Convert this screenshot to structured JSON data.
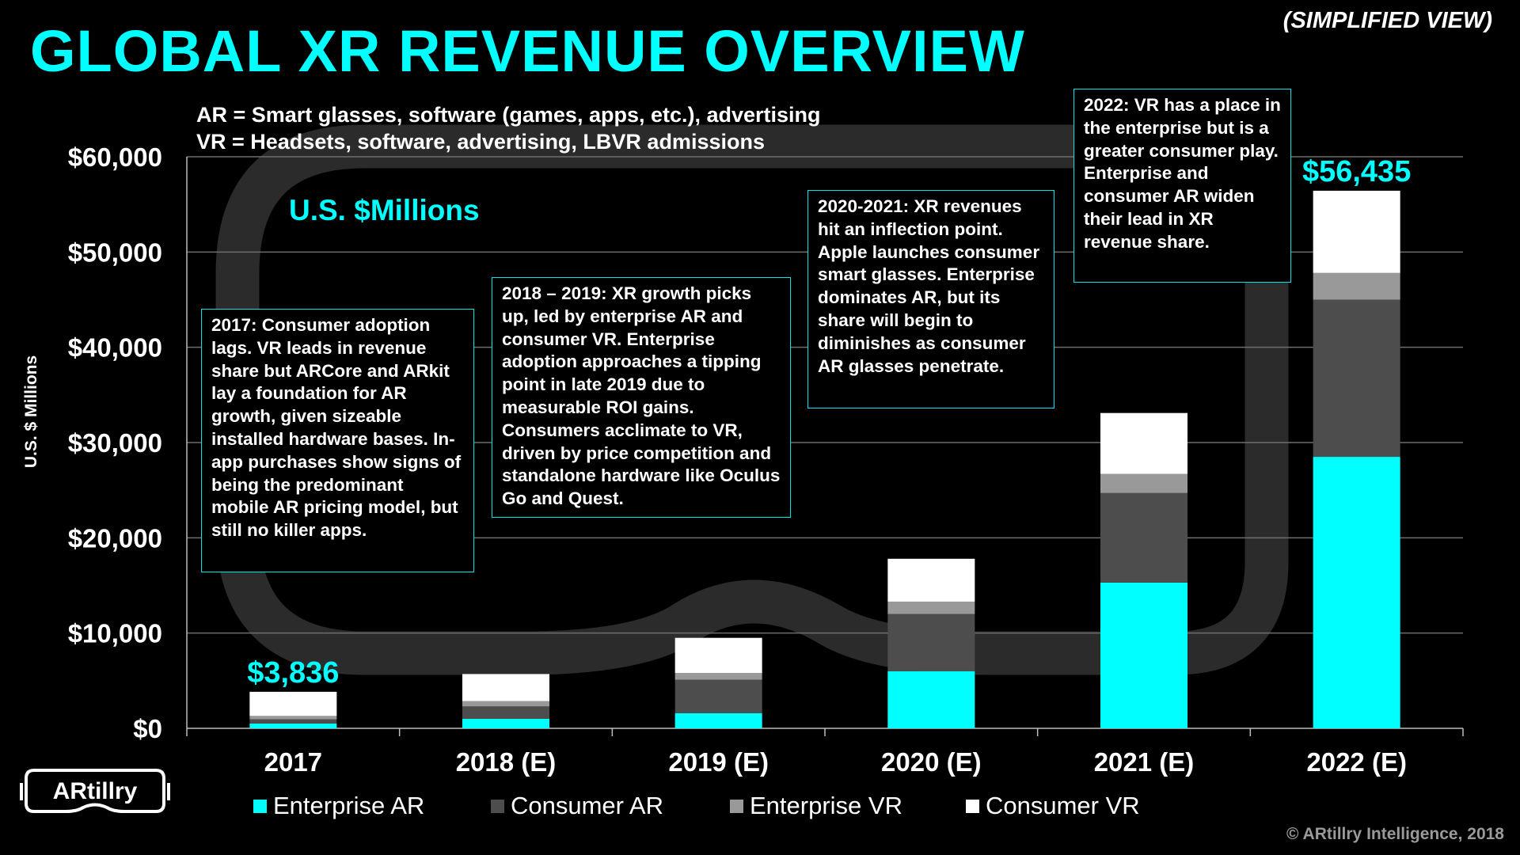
{
  "header": {
    "title": "GLOBAL XR REVENUE OVERVIEW",
    "view_tag": "(SIMPLIFIED VIEW)"
  },
  "definitions": {
    "ar": "AR = Smart glasses, software (games, apps, etc.), advertising",
    "vr": "VR = Headsets, software, advertising, LBVR admissions"
  },
  "unit_label": "U.S. $Millions",
  "annotations": {
    "y2017": "2017: Consumer adoption lags. VR leads in revenue share but  ARCore and ARkit lay a foundation for AR growth, given sizeable installed hardware bases. In-app purchases show signs of being the predominant mobile AR pricing model, but still no killer apps.",
    "y2018": "2018 – 2019: XR growth picks up, led by enterprise AR and consumer VR.  Enterprise adoption approaches a tipping point in late 2019 due to measurable ROI gains. Consumers acclimate to VR, driven by price competition and standalone hardware like Oculus Go and Quest.",
    "y2020": "2020-2021: XR revenues hit an inflection point. Apple launches consumer smart glasses. Enterprise dominates AR, but its share will begin to diminishes as consumer AR glasses penetrate.",
    "y2022": "2022: VR has a place in the enterprise but is a greater consumer play. Enterprise and consumer AR widen their lead in XR revenue share."
  },
  "logo": {
    "text": "ARtillry"
  },
  "copyright": "© ARtillry Intelligence, 2018",
  "chart_data": {
    "type": "bar",
    "stacked": true,
    "title": "GLOBAL XR REVENUE OVERVIEW",
    "ylabel": "U.S. $ Millions",
    "xlabel": "",
    "ylim": [
      0,
      60000
    ],
    "yticks": [
      0,
      10000,
      20000,
      30000,
      40000,
      50000,
      60000
    ],
    "ytick_labels": [
      "$0",
      "$10,000",
      "$20,000",
      "$30,000",
      "$40,000",
      "$50,000",
      "$60,000"
    ],
    "grid": true,
    "legend_position": "bottom",
    "categories": [
      "2017",
      "2018 (E)",
      "2019 (E)",
      "2020 (E)",
      "2021 (E)",
      "2022 (E)"
    ],
    "series": [
      {
        "name": "Enterprise AR",
        "color": "#00FFFF",
        "values": [
          500,
          1000,
          1600,
          6000,
          15300,
          28500
        ]
      },
      {
        "name": "Consumer AR",
        "color": "#4D4D4D",
        "values": [
          450,
          1300,
          3500,
          6000,
          9400,
          16500
        ]
      },
      {
        "name": "Enterprise VR",
        "color": "#999999",
        "values": [
          350,
          550,
          700,
          1300,
          2000,
          2800
        ]
      },
      {
        "name": "Consumer VR",
        "color": "#FFFFFF",
        "values": [
          2536,
          2850,
          3700,
          4500,
          6400,
          8635
        ]
      }
    ],
    "total_labels": [
      {
        "category": "2017",
        "text": "$3,836",
        "value": 3836
      },
      {
        "category": "2022 (E)",
        "text": "$56,435",
        "value": 56435
      }
    ]
  }
}
